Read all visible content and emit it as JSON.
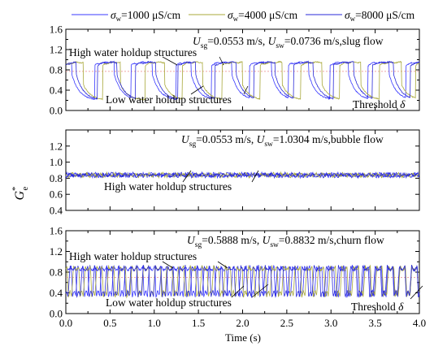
{
  "legend": [
    {
      "text": "σ",
      "sub": "w",
      "rest": "=1000 μS/cm",
      "color": "#3838ff"
    },
    {
      "text": "σ",
      "sub": "w",
      "rest": "=4000 μS/cm",
      "color": "#a8a83a"
    },
    {
      "text": "σ",
      "sub": "w",
      "rest": "=8000 μS/cm",
      "color": "#2a2ad8"
    }
  ],
  "ylabel": {
    "main": "G",
    "sub": "e",
    "sup": "*"
  },
  "xlabel": "Time (s)",
  "colors": {
    "series1": "#3838ff",
    "series2": "#a8a83a",
    "series3": "#2a2ad8",
    "threshold": "#e88888"
  },
  "chart_data": [
    {
      "type": "line",
      "panel": "top",
      "flow_text": {
        "ug_label": "U",
        "ug_sub": "sg",
        "ug_val": "=0.0553 m/s, ",
        "uw_label": "U",
        "uw_sub": "sw",
        "uw_val": "=0.0736 m/s,slug flow"
      },
      "annotations": [
        "High water holdup structures",
        "Low water holdup structures"
      ],
      "threshold_label": {
        "text": "Threshold ",
        "symbol": "δ"
      },
      "threshold": 0.77,
      "xlim": [
        0.0,
        4.0
      ],
      "ylim": [
        0.0,
        1.6
      ],
      "yticks": [
        "0.0",
        "0.4",
        "0.8",
        "1.2",
        "1.6"
      ],
      "yticks_minor": [
        "0.2",
        "0.6",
        "1.0",
        "1.4"
      ],
      "ymajor_values": [
        0.0,
        0.4,
        0.8,
        1.2,
        1.6
      ],
      "yminor_values": [
        0.2,
        0.6,
        1.0,
        1.4
      ],
      "high": 0.95,
      "low": 0.22,
      "series": [
        {
          "name": "σw=1000 μS/cm",
          "switches": [
            0.07,
            0.33,
            0.55,
            0.74,
            0.98,
            1.25,
            1.42,
            1.65,
            1.88,
            2.08,
            2.33,
            2.52,
            2.75,
            2.99,
            3.2,
            3.42,
            3.66,
            3.85
          ]
        },
        {
          "name": "σw=4000 μS/cm",
          "switches": [
            0.2,
            0.42,
            0.62,
            0.9,
            1.12,
            1.32,
            1.55,
            1.77,
            2.0,
            2.2,
            2.45,
            2.66,
            2.9,
            3.1,
            3.34,
            3.55,
            3.8,
            3.96
          ]
        },
        {
          "name": "σw=8000 μS/cm",
          "switches": [
            0.12,
            0.36,
            0.58,
            0.79,
            1.02,
            1.27,
            1.47,
            1.69,
            1.93,
            2.13,
            2.37,
            2.58,
            2.8,
            3.03,
            3.26,
            3.47,
            3.71,
            3.9
          ]
        }
      ]
    },
    {
      "type": "line",
      "panel": "middle",
      "flow_text": {
        "ug_label": "U",
        "ug_sub": "sg",
        "ug_val": "=0.0553 m/s, ",
        "uw_label": "U",
        "uw_sub": "sw",
        "uw_val": "=1.0304 m/s,bubble flow"
      },
      "annotations": [
        "High water holdup structures"
      ],
      "xlim": [
        0.0,
        4.0
      ],
      "ylim": [
        0.4,
        1.4
      ],
      "yticks": [
        "0.4",
        "0.6",
        "0.8",
        "1.0",
        "1.2"
      ],
      "ymajor_values": [
        0.4,
        0.6,
        0.8,
        1.0,
        1.2
      ],
      "mean": 0.84,
      "amplitude": 0.03,
      "series": [
        {
          "name": "σw=1000 μS/cm"
        },
        {
          "name": "σw=4000 μS/cm"
        },
        {
          "name": "σw=8000 μS/cm"
        }
      ]
    },
    {
      "type": "line",
      "panel": "bottom",
      "flow_text": {
        "ug_label": "U",
        "ug_sub": "sg",
        "ug_val": "=0.5888 m/s, ",
        "uw_label": "U",
        "uw_sub": "sw",
        "uw_val": "=0.8832 m/s,churn flow"
      },
      "annotations": [
        "High water holdup structures",
        "Low water holdup structures"
      ],
      "threshold_label": {
        "text": "Threshold ",
        "symbol": "δ"
      },
      "threshold": 0.7,
      "xlim": [
        0.0,
        4.0
      ],
      "ylim": [
        0.0,
        1.6
      ],
      "yticks": [
        "0.0",
        "0.4",
        "0.8",
        "1.2",
        "1.6"
      ],
      "yticks_minor": [
        "0.2",
        "0.6",
        "1.0",
        "1.4"
      ],
      "ymajor_values": [
        0.0,
        0.4,
        0.8,
        1.2,
        1.6
      ],
      "yminor_values": [
        0.2,
        0.6,
        1.0,
        1.4
      ],
      "high": 0.92,
      "low": 0.38,
      "series": [
        {
          "name": "σw=1000 μS/cm",
          "period": 0.135,
          "phase": 0.0
        },
        {
          "name": "σw=4000 μS/cm",
          "period": 0.132,
          "phase": 0.045
        },
        {
          "name": "σw=8000 μS/cm",
          "period": 0.138,
          "phase": 0.09
        }
      ]
    }
  ],
  "xticks": [
    "0.0",
    "0.5",
    "1.0",
    "1.5",
    "2.0",
    "2.5",
    "3.0",
    "3.5",
    "4.0"
  ],
  "xtick_values": [
    0.0,
    0.5,
    1.0,
    1.5,
    2.0,
    2.5,
    3.0,
    3.5,
    4.0
  ]
}
